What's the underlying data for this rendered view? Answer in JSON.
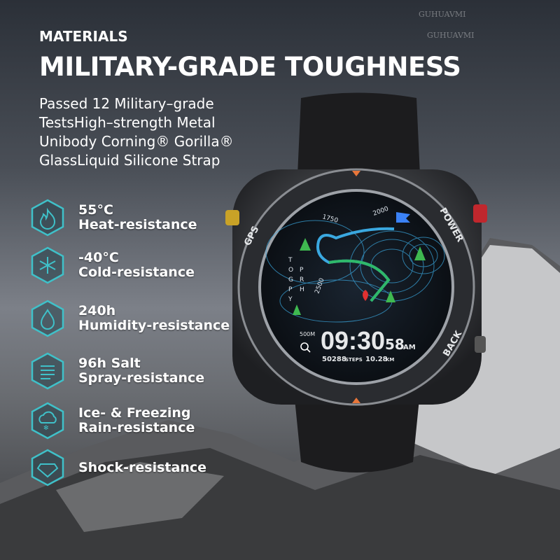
{
  "header": {
    "label": "MATERIALS",
    "title": "MILITARY-GRADE TOUGHNESS"
  },
  "description": [
    "Passed 12 Military–grade",
    "TestsHigh–strength Metal",
    "Unibody Corning® Gorilla®",
    "GlassLiquid Silicone Strap"
  ],
  "features": [
    {
      "icon": "flame-icon",
      "value": "55°C",
      "label": "Heat-resistance"
    },
    {
      "icon": "snowflake-icon",
      "value": "-40°C",
      "label": "Cold-resistance"
    },
    {
      "icon": "water-drop-icon",
      "value": "240h",
      "label": "Humidity-resistance"
    },
    {
      "icon": "salt-spray-icon",
      "value": "96h Salt",
      "label": "Spray-resistance"
    },
    {
      "icon": "freezing-rain-icon",
      "value": "Ice- & Freezing",
      "label": "Rain-resistance"
    },
    {
      "icon": "diamond-icon",
      "value": "",
      "label": "Shock-resistance"
    }
  ],
  "watch": {
    "bezel": {
      "left": "GPS",
      "right_top": "POWER",
      "right_bottom": "BACK"
    },
    "map": {
      "contours": [
        "1750",
        "2000",
        "2500"
      ],
      "vertical_text": [
        "O",
        "P",
        "G",
        "R",
        "P",
        "H",
        "Y"
      ],
      "top_letter": "T"
    },
    "scale": "500M",
    "time": {
      "hm": "09:30",
      "seconds": "58",
      "ampm": "AM"
    },
    "steps": "50288",
    "steps_unit": "STEPS",
    "distance": "10.28",
    "distance_unit": "KM"
  },
  "watermark": "GUHUAVMI",
  "colors": {
    "accent": "#3fc1c9",
    "route_blue": "#3aa8e0",
    "route_green": "#2fb86a",
    "power_button": "#c0272d",
    "gps_button": "#c9a227"
  }
}
